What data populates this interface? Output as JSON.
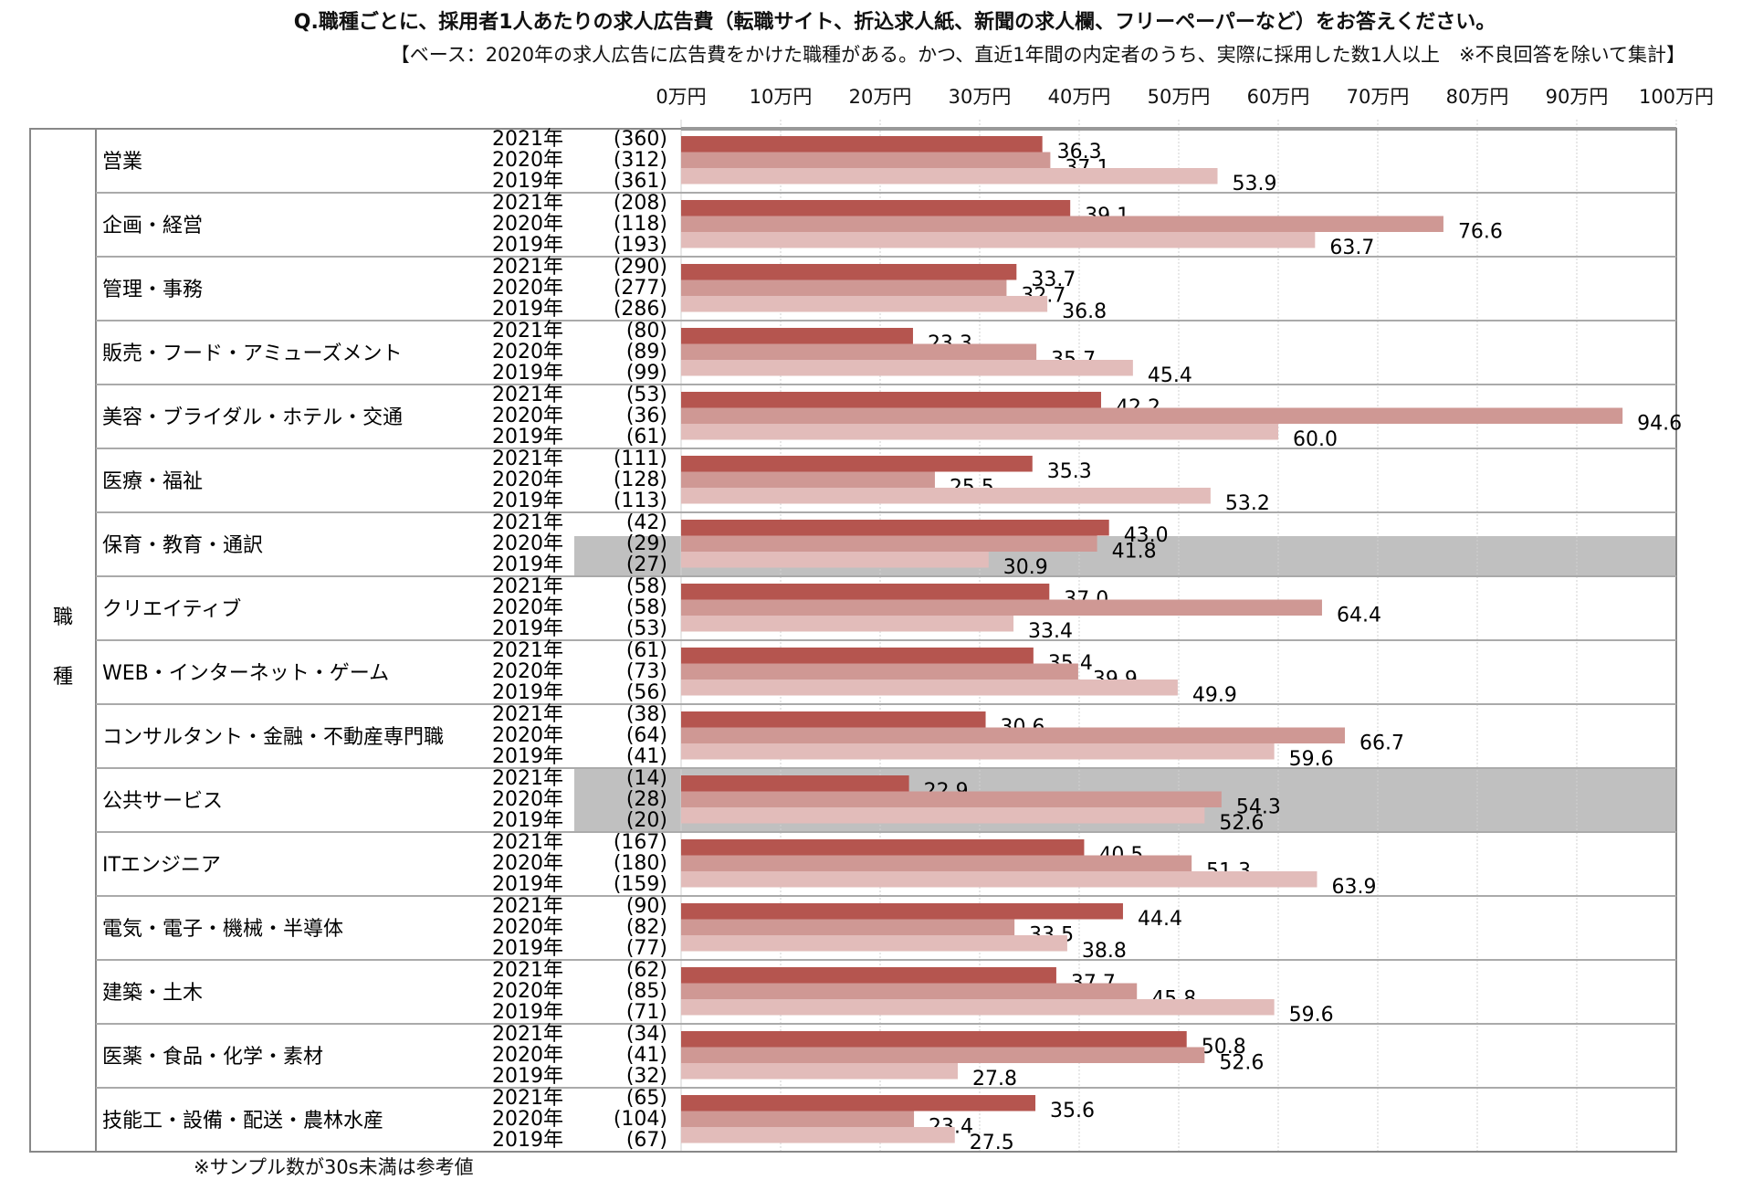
{
  "chart_data": {
    "type": "bar",
    "orientation": "horizontal",
    "title": "Q.職種ごとに、採用者1人あたりの求人広告費（転職サイト、折込求人紙、新聞の求人欄、フリーペーパーなど）をお答えください。",
    "subtitle": "【ベース：2020年の求人広告に広告費をかけた職種がある。かつ、直近1年間の内定者のうち、実際に採用した数1人以上　※不良回答を除いて集計】",
    "footnote": "※サンプル数が30s未満は参考値",
    "row_header": [
      "職",
      "種"
    ],
    "xlim": [
      0,
      100
    ],
    "xticks": [
      "0万円",
      "10万円",
      "20万円",
      "30万円",
      "40万円",
      "50万円",
      "60万円",
      "70万円",
      "80万円",
      "90万円",
      "100万円"
    ],
    "grid": true,
    "series": [
      {
        "name": "2021年",
        "color": "#b5554f"
      },
      {
        "name": "2020年",
        "color": "#cf9894"
      },
      {
        "name": "2019年",
        "color": "#e2bcba"
      }
    ],
    "highlight_color": "#c0c0c0",
    "categories": [
      {
        "label": "営業",
        "n": [
          "(360)",
          "(312)",
          "(361)"
        ],
        "values": [
          36.3,
          37.1,
          53.9
        ],
        "highlight": []
      },
      {
        "label": "企画・経営",
        "n": [
          "(208)",
          "(118)",
          "(193)"
        ],
        "values": [
          39.1,
          76.6,
          63.7
        ],
        "highlight": []
      },
      {
        "label": "管理・事務",
        "n": [
          "(290)",
          "(277)",
          "(286)"
        ],
        "values": [
          33.7,
          32.7,
          36.8
        ],
        "highlight": []
      },
      {
        "label": "販売・フード・アミューズメント",
        "n": [
          "(80)",
          "(89)",
          "(99)"
        ],
        "values": [
          23.3,
          35.7,
          45.4
        ],
        "highlight": []
      },
      {
        "label": "美容・ブライダル・ホテル・交通",
        "n": [
          "(53)",
          "(36)",
          "(61)"
        ],
        "values": [
          42.2,
          94.6,
          60.0
        ],
        "highlight": []
      },
      {
        "label": "医療・福祉",
        "n": [
          "(111)",
          "(128)",
          "(113)"
        ],
        "values": [
          35.3,
          25.5,
          53.2
        ],
        "highlight": []
      },
      {
        "label": "保育・教育・通訳",
        "n": [
          "(42)",
          "(29)",
          "(27)"
        ],
        "values": [
          43.0,
          41.8,
          30.9
        ],
        "highlight": [
          1,
          2
        ]
      },
      {
        "label": "クリエイティブ",
        "n": [
          "(58)",
          "(58)",
          "(53)"
        ],
        "values": [
          37.0,
          64.4,
          33.4
        ],
        "highlight": []
      },
      {
        "label": "WEB・インターネット・ゲーム",
        "n": [
          "(61)",
          "(73)",
          "(56)"
        ],
        "values": [
          35.4,
          39.9,
          49.9
        ],
        "highlight": []
      },
      {
        "label": "コンサルタント・金融・不動産専門職",
        "n": [
          "(38)",
          "(64)",
          "(41)"
        ],
        "values": [
          30.6,
          66.7,
          59.6
        ],
        "highlight": []
      },
      {
        "label": "公共サービス",
        "n": [
          "(14)",
          "(28)",
          "(20)"
        ],
        "values": [
          22.9,
          54.3,
          52.6
        ],
        "highlight": [
          0,
          1,
          2
        ]
      },
      {
        "label": "ITエンジニア",
        "n": [
          "(167)",
          "(180)",
          "(159)"
        ],
        "values": [
          40.5,
          51.3,
          63.9
        ],
        "highlight": []
      },
      {
        "label": "電気・電子・機械・半導体",
        "n": [
          "(90)",
          "(82)",
          "(77)"
        ],
        "values": [
          44.4,
          33.5,
          38.8
        ],
        "highlight": []
      },
      {
        "label": "建築・土木",
        "n": [
          "(62)",
          "(85)",
          "(71)"
        ],
        "values": [
          37.7,
          45.8,
          59.6
        ],
        "highlight": []
      },
      {
        "label": "医薬・食品・化学・素材",
        "n": [
          "(34)",
          "(41)",
          "(32)"
        ],
        "values": [
          50.8,
          52.6,
          27.8
        ],
        "highlight": []
      },
      {
        "label": "技能工・設備・配送・農林水産",
        "n": [
          "(65)",
          "(104)",
          "(67)"
        ],
        "values": [
          35.6,
          23.4,
          27.5
        ],
        "highlight": []
      }
    ]
  }
}
